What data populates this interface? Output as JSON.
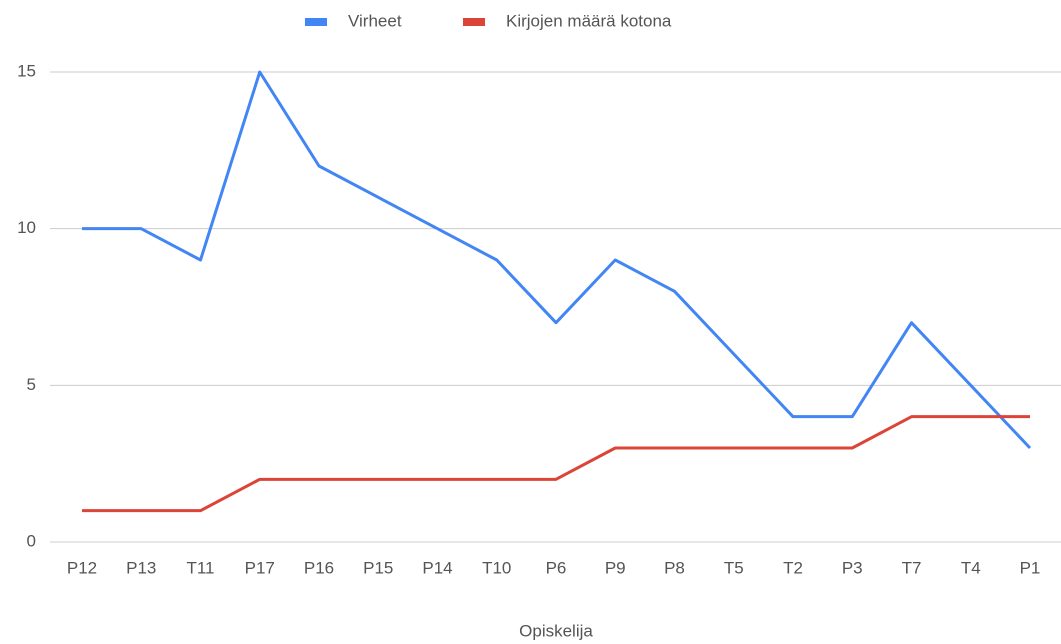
{
  "chart_data": {
    "type": "line",
    "x_label": "Opiskelija",
    "categories": [
      "P12",
      "P13",
      "T11",
      "P17",
      "P16",
      "P15",
      "P14",
      "T10",
      "P6",
      "P9",
      "P8",
      "T5",
      "T2",
      "P3",
      "T7",
      "T4",
      "P1"
    ],
    "series": [
      {
        "name": "Virheet",
        "color": "#4285f4",
        "values": [
          10,
          10,
          9,
          15,
          12,
          11,
          10,
          9,
          7,
          9,
          8,
          6,
          4,
          4,
          7,
          5,
          3
        ]
      },
      {
        "name": "Kirjojen määrä kotona",
        "color": "#db4437",
        "values": [
          1,
          1,
          1,
          2,
          2,
          2,
          2,
          2,
          2,
          3,
          3,
          3,
          3,
          3,
          4,
          4,
          4
        ]
      }
    ],
    "ylim": [
      0,
      15
    ],
    "yticks": [
      0,
      5,
      10,
      15
    ],
    "grid": true,
    "legend": "top"
  }
}
